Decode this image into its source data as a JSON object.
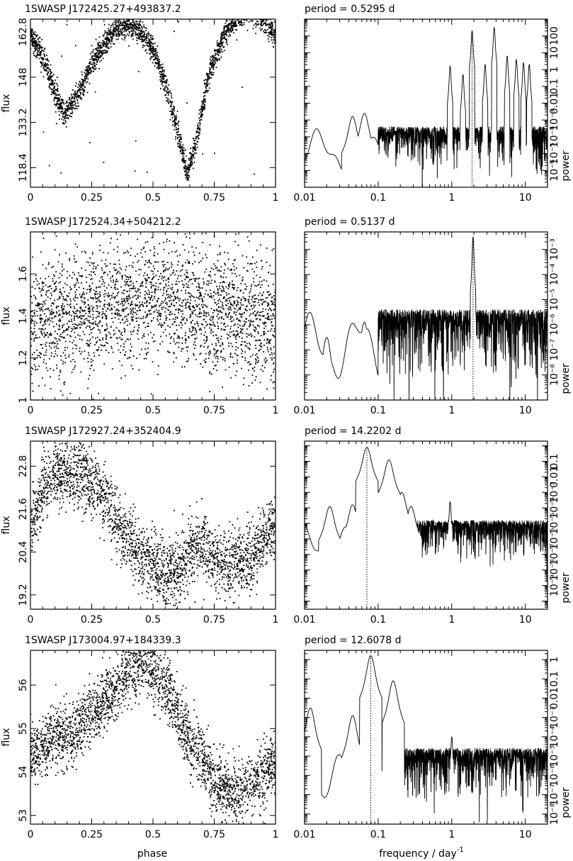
{
  "x_axis_label": "phase",
  "freq_axis_label": "frequency / day",
  "freq_axis_exponent": "-1",
  "flux_label": "flux",
  "power_label": "power",
  "colors": {
    "ink": "#000000",
    "background": "#ffffff"
  },
  "chart_data": [
    {
      "type": "scatter",
      "title": "1SWASP J172425.27+493837.2",
      "xlabel": "phase",
      "ylabel": "flux",
      "xlim": [
        0,
        1
      ],
      "ylim": [
        112,
        167
      ],
      "x_ticks": [
        0,
        0.25,
        0.5,
        0.75,
        1
      ],
      "x_tick_labels": [
        "0",
        "0.25",
        "0.5",
        "0.75",
        "1"
      ],
      "y_ticks": [
        118.4,
        133.2,
        148,
        162.8
      ],
      "y_tick_labels": [
        "118.4",
        "133.2",
        "148",
        "162.8"
      ],
      "series": [
        {
          "shape": "eclipsing",
          "x": [
            0,
            0.05,
            0.1,
            0.14,
            0.2,
            0.25,
            0.3,
            0.35,
            0.4,
            0.45,
            0.5,
            0.55,
            0.6,
            0.64,
            0.68,
            0.72,
            0.75,
            0.8,
            0.85,
            0.9,
            0.95,
            1.0
          ],
          "y": [
            162,
            155,
            143,
            136,
            143,
            152,
            159,
            164,
            165,
            163,
            157,
            146,
            131,
            116,
            128,
            146,
            154,
            163,
            168,
            170,
            167,
            162
          ],
          "scatter": 2.0
        }
      ],
      "outliers": 25
    },
    {
      "type": "line",
      "title": "period =    0.5295 d",
      "xlabel": "frequency / day-1",
      "ylabel": "power",
      "xscale": "log",
      "yscale": "log",
      "xlim": [
        0.01,
        20
      ],
      "ylim": [
        1e-07,
        1000
      ],
      "x_ticks": [
        0.01,
        0.1,
        1,
        10
      ],
      "x_tick_labels": [
        "0.01",
        "0.1",
        "1",
        "10"
      ],
      "y_tick_labels": [
        "10⁻⁶",
        "10⁻⁵",
        "10⁻⁴",
        "10⁻³",
        "0.01",
        "0.1",
        "1",
        "10",
        "100"
      ],
      "y_ticks_log10": [
        -6,
        -5,
        -4,
        -3,
        -2,
        -1,
        0,
        1,
        2
      ],
      "period_days": 0.5295,
      "marked_frequency": 1.8886,
      "peaks": [
        [
          1.8886,
          2.3
        ],
        [
          3.777,
          2.5
        ],
        [
          0.95,
          0.2
        ],
        [
          1.42,
          -0.3
        ],
        [
          2.84,
          0.3
        ],
        [
          5.66,
          0.8
        ],
        [
          7.55,
          0.6
        ],
        [
          9.44,
          0.4
        ],
        [
          11.3,
          0.3
        ],
        [
          0.065,
          -2.6
        ],
        [
          0.045,
          -2.8
        ],
        [
          0.013,
          -4.5
        ]
      ],
      "noise_median_log10": -4.3
    },
    {
      "type": "scatter",
      "title": "1SWASP J172524.34+504212.2",
      "xlabel": "phase",
      "ylabel": "flux",
      "xlim": [
        0,
        1
      ],
      "ylim": [
        1.0,
        1.8
      ],
      "x_ticks": [
        0,
        0.25,
        0.5,
        0.75,
        1
      ],
      "x_tick_labels": [
        "0",
        "0.25",
        "0.5",
        "0.75",
        "1"
      ],
      "y_ticks": [
        1,
        1.2,
        1.4,
        1.6
      ],
      "y_tick_labels": [
        "1",
        "1.2",
        "1.4",
        "1.6"
      ],
      "series": [
        {
          "shape": "noisy",
          "x": [
            0,
            0.25,
            0.5,
            0.75,
            1
          ],
          "y": [
            1.36,
            1.42,
            1.5,
            1.43,
            1.37
          ],
          "scatter": 0.14
        }
      ]
    },
    {
      "type": "line",
      "title": "period =    0.5137 d",
      "xlabel": "frequency / day-1",
      "ylabel": "power",
      "xscale": "log",
      "yscale": "log",
      "xlim": [
        0.01,
        20
      ],
      "ylim": [
        1e-09,
        0.005
      ],
      "x_ticks": [
        0.01,
        0.1,
        1,
        10
      ],
      "x_tick_labels": [
        "0.01",
        "0.1",
        "1",
        "10"
      ],
      "y_tick_labels": [
        "10⁻⁸",
        "10⁻⁷",
        "10⁻⁶",
        "10⁻⁵",
        "10⁻⁴",
        "10⁻³"
      ],
      "y_ticks_log10": [
        -8,
        -7,
        -6,
        -5,
        -4,
        -3
      ],
      "period_days": 0.5137,
      "marked_frequency": 1.9467,
      "peaks": [
        [
          1.9467,
          -2.5
        ],
        [
          0.065,
          -5.9
        ],
        [
          0.045,
          -6.1
        ],
        [
          0.02,
          -6.5
        ]
      ],
      "noise_median_log10": -6.3
    },
    {
      "type": "scatter",
      "title": "1SWASP J172927.24+352404.9",
      "xlabel": "phase",
      "ylabel": "flux",
      "xlim": [
        0,
        1
      ],
      "ylim": [
        18.8,
        23.5
      ],
      "x_ticks": [
        0,
        0.25,
        0.5,
        0.75,
        1
      ],
      "x_tick_labels": [
        "0",
        "0.25",
        "0.5",
        "0.75",
        "1"
      ],
      "y_ticks": [
        19.2,
        20.4,
        21.6,
        22.8
      ],
      "y_tick_labels": [
        "19.2",
        "20.4",
        "21.6",
        "22.8"
      ],
      "series": [
        {
          "shape": "dip",
          "x": [
            0,
            0.05,
            0.1,
            0.15,
            0.2,
            0.25,
            0.3,
            0.35,
            0.4,
            0.45,
            0.5,
            0.55,
            0.6,
            0.65,
            0.7,
            0.75,
            0.8,
            0.85,
            0.9,
            0.95,
            1.0
          ],
          "y": [
            21.0,
            22.2,
            22.6,
            22.5,
            22.6,
            22.4,
            21.9,
            21.3,
            20.8,
            20.3,
            20.0,
            19.8,
            19.8,
            20.4,
            20.5,
            20.2,
            20.0,
            20.2,
            20.1,
            20.8,
            21.1
          ],
          "scatter": 0.45
        }
      ]
    },
    {
      "type": "line",
      "title": "period =  14.2202 d",
      "xlabel": "frequency / day-1",
      "ylabel": "power",
      "xscale": "log",
      "yscale": "log",
      "xlim": [
        0.01,
        20
      ],
      "ylim": [
        3e-11,
        2
      ],
      "x_ticks": [
        0.01,
        0.1,
        1,
        10
      ],
      "x_tick_labels": [
        "0.01",
        "0.1",
        "1",
        "10"
      ],
      "y_tick_labels": [
        "10⁻⁹",
        "10⁻⁸",
        "10⁻⁷",
        "10⁻⁶",
        "10⁻⁵",
        "10⁻⁴",
        "10⁻³",
        "0.01",
        "0.1"
      ],
      "y_ticks_log10": [
        -9,
        -8,
        -7,
        -6,
        -5,
        -4,
        -3,
        -2,
        -1
      ],
      "period_days": 14.2202,
      "marked_frequency": 0.0703,
      "peaks": [
        [
          0.0703,
          -0.1
        ],
        [
          0.14,
          -0.9
        ],
        [
          0.21,
          -3.0
        ],
        [
          0.045,
          -3.8
        ],
        [
          0.022,
          -3.9
        ],
        [
          0.95,
          -3.6
        ],
        [
          0.28,
          -3.9
        ]
      ],
      "noise_median_log10": -5.7
    },
    {
      "type": "scatter",
      "title": "1SWASP J173004.97+184339.3",
      "xlabel": "phase",
      "ylabel": "flux",
      "xlim": [
        0,
        1
      ],
      "ylim": [
        52.8,
        56.8
      ],
      "x_ticks": [
        0,
        0.25,
        0.5,
        0.75,
        1
      ],
      "x_tick_labels": [
        "0",
        "0.25",
        "0.5",
        "0.75",
        "1"
      ],
      "y_ticks": [
        53,
        54,
        55,
        56
      ],
      "y_tick_labels": [
        "53",
        "54",
        "55",
        "56"
      ],
      "series": [
        {
          "shape": "hump",
          "x": [
            0,
            0.05,
            0.1,
            0.15,
            0.2,
            0.25,
            0.3,
            0.35,
            0.4,
            0.45,
            0.5,
            0.55,
            0.6,
            0.65,
            0.7,
            0.75,
            0.8,
            0.85,
            0.9,
            0.95,
            1.0
          ],
          "y": [
            54.4,
            54.6,
            54.8,
            54.8,
            55.0,
            55.4,
            55.6,
            55.9,
            56.4,
            56.5,
            56.4,
            56.0,
            55.4,
            54.7,
            54.3,
            53.8,
            53.6,
            53.6,
            53.7,
            53.9,
            54.3
          ],
          "scatter": 0.35
        }
      ]
    },
    {
      "type": "line",
      "title": "period =  12.6078 d",
      "xlabel": "frequency / day-1",
      "ylabel": "power",
      "xscale": "log",
      "yscale": "log",
      "xlim": [
        0.01,
        20
      ],
      "ylim": [
        3e-09,
        3
      ],
      "x_ticks": [
        0.01,
        0.1,
        1,
        10
      ],
      "x_tick_labels": [
        "0.01",
        "0.1",
        "1",
        "10"
      ],
      "y_tick_labels": [
        "10⁻⁸",
        "10⁻⁷",
        "10⁻⁶",
        "10⁻⁵",
        "10⁻⁴",
        "10⁻³",
        "0.01",
        "0.1",
        "1"
      ],
      "y_ticks_log10": [
        -8,
        -7,
        -6,
        -5,
        -4,
        -3,
        -2,
        -1,
        0
      ],
      "period_days": 12.6078,
      "marked_frequency": 0.0793,
      "peaks": [
        [
          0.0793,
          0.2
        ],
        [
          0.16,
          -1.1
        ],
        [
          0.045,
          -2.9
        ],
        [
          0.012,
          -2.5
        ],
        [
          1.0,
          -4.0
        ]
      ],
      "noise_median_log10": -5.5
    }
  ]
}
